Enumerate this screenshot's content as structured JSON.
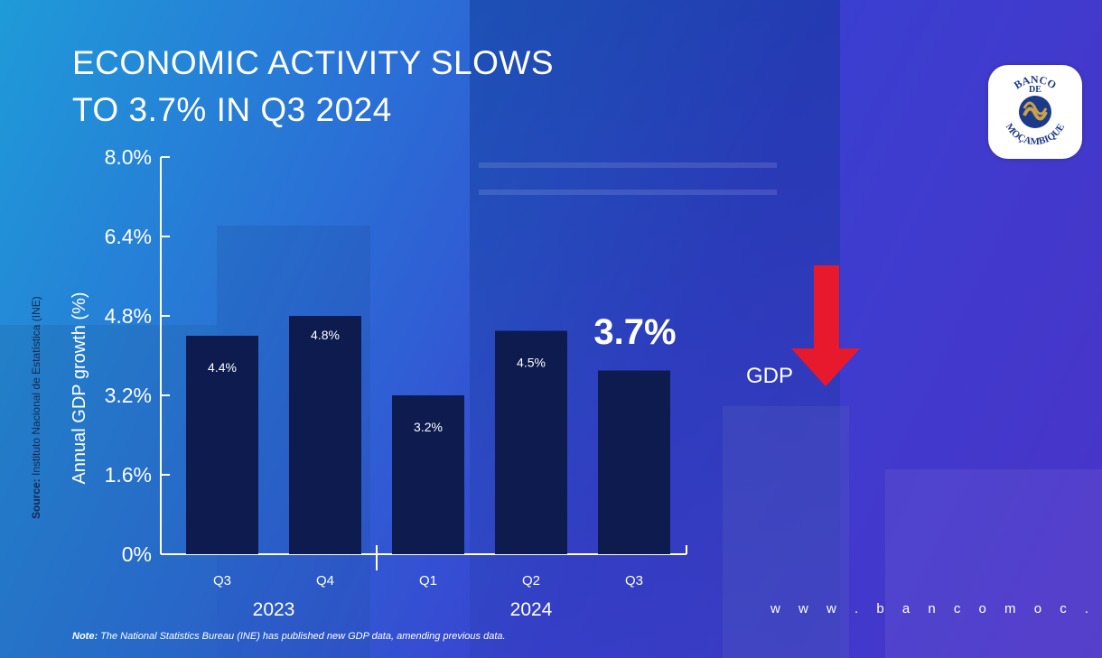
{
  "title": {
    "line1": "ECONOMIC ACTIVITY SLOWS",
    "line2": "TO 3.7% IN Q3 2024"
  },
  "logo": {
    "text": "BANCO DE MOÇAMBIQUE",
    "top_text": "BANCO",
    "middle_text": "DE",
    "bottom_text": "MOÇAMBIQUE"
  },
  "source": {
    "label": "Source:",
    "text": "Instituto Nacional de Estatística (INE)"
  },
  "chart_data": {
    "type": "bar",
    "categories": [
      "Q3",
      "Q4",
      "Q1",
      "Q2",
      "Q3"
    ],
    "category_groups": [
      {
        "label": "2023",
        "span": [
          0,
          1
        ]
      },
      {
        "label": "2024",
        "span": [
          2,
          4
        ]
      }
    ],
    "values": [
      4.4,
      4.8,
      3.2,
      4.5,
      3.7
    ],
    "value_labels": [
      "4.4%",
      "4.8%",
      "3.2%",
      "4.5%",
      ""
    ],
    "highlight_label": "3.7%",
    "ylabel": "Annual GDP growth (%)",
    "xlabel": "",
    "ylim": [
      0,
      8.0
    ],
    "yticks": [
      0,
      1.6,
      3.2,
      4.8,
      6.4,
      8.0
    ],
    "ytick_labels": [
      "0%",
      "1.6%",
      "3.2%",
      "4.8%",
      "6.4%",
      "8.0%"
    ],
    "bar_color": "#0d1b4f",
    "grid": false
  },
  "indicator": {
    "label": "GDP",
    "arrow": "down-arrow-icon",
    "color": "#e8192c"
  },
  "website": "w w w . b a n c o m o c . m z",
  "note": {
    "label": "Note:",
    "text": "The National Statistics Bureau (INE) has published new GDP data, amending previous data."
  }
}
